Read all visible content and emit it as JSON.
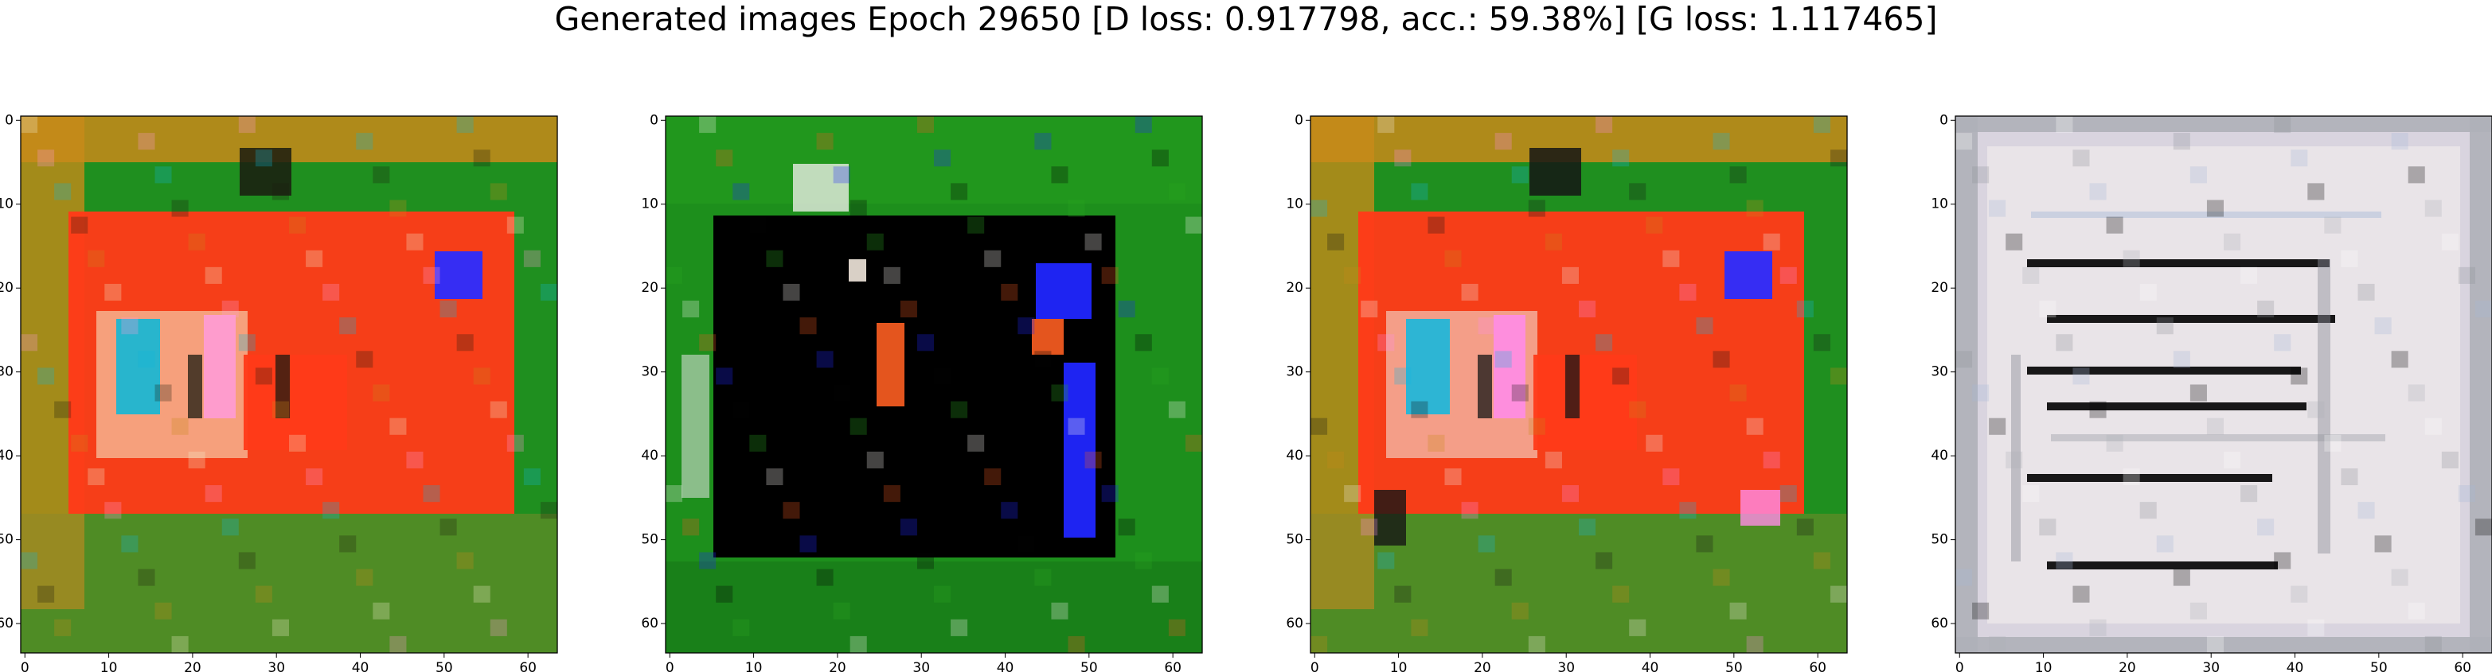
{
  "figure": {
    "title": "Generated images Epoch 29650 [D loss: 0.917798, acc.: 59.38%] [G loss: 1.117465]"
  },
  "panels": [
    {
      "name": "panel-1",
      "palette": {
        "bg": "#1f8f1f",
        "frame": "#c98a1a",
        "main": "#ff3a18",
        "accent1": "#ff9bd6",
        "accent2": "#12b7d6",
        "dark": "#1b1b10",
        "bright": "#f6f0d0"
      }
    },
    {
      "name": "panel-2",
      "palette": {
        "bg": "#1d8f1c",
        "frame": "#2aa620",
        "main": "#000000",
        "accent1": "#f05a20",
        "accent2": "#2026ff",
        "dark": "#030303",
        "bright": "#f7f3f1"
      }
    },
    {
      "name": "panel-3",
      "palette": {
        "bg": "#1f8f1f",
        "frame": "#c98a1a",
        "main": "#ff3a18",
        "accent1": "#ff8ce7",
        "accent2": "#17b7dd",
        "dark": "#151515",
        "bright": "#f3ece5"
      }
    },
    {
      "name": "panel-4",
      "palette": {
        "bg": "#d9d4df",
        "frame": "#aeb0b8",
        "main": "#ebe6ea",
        "accent1": "#8b8f98",
        "accent2": "#a5b7d8",
        "dark": "#050505",
        "bright": "#ffffff"
      }
    }
  ],
  "axes": {
    "x_ticks": [
      0,
      10,
      20,
      30,
      40,
      50,
      60
    ],
    "y_ticks": [
      0,
      10,
      20,
      30,
      40,
      50,
      60
    ],
    "xlim": [
      -0.5,
      63.5
    ],
    "ylim": [
      63.5,
      -0.5
    ]
  }
}
